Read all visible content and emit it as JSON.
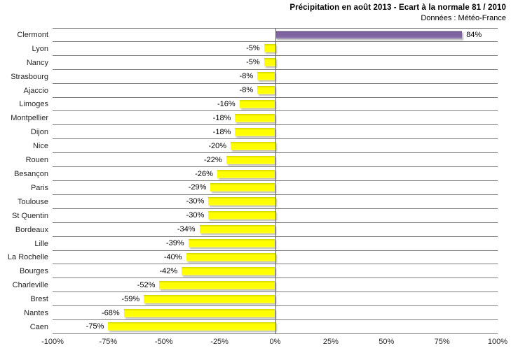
{
  "chart_data": {
    "type": "bar",
    "orientation": "horizontal",
    "title": "Précipitation en août 2013 - Ecart à la normale 81 / 2010",
    "subtitle": "Données : Météo-France",
    "categories": [
      "Clermont",
      "Lyon",
      "Nancy",
      "Strasbourg",
      "Ajaccio",
      "Limoges",
      "Montpellier",
      "Dijon",
      "Nice",
      "Rouen",
      "Besançon",
      "Paris",
      "Toulouse",
      "St Quentin",
      "Bordeaux",
      "Lille",
      "La Rochelle",
      "Bourges",
      "Charleville",
      "Brest",
      "Nantes",
      "Caen"
    ],
    "values": [
      84,
      -5,
      -5,
      -8,
      -8,
      -16,
      -18,
      -18,
      -20,
      -22,
      -26,
      -29,
      -30,
      -30,
      -34,
      -39,
      -40,
      -42,
      -52,
      -59,
      -68,
      -75
    ],
    "value_labels": [
      "84%",
      "-5%",
      "-5%",
      "-8%",
      "-8%",
      "-16%",
      "-18%",
      "-18%",
      "-20%",
      "-22%",
      "-26%",
      "-29%",
      "-30%",
      "-30%",
      "-34%",
      "-39%",
      "-40%",
      "-42%",
      "-52%",
      "-59%",
      "-68%",
      "-75%"
    ],
    "xlabel": "",
    "ylabel": "",
    "xlim": [
      -100,
      100
    ],
    "x_ticks": [
      "-100%",
      "-75%",
      "-50%",
      "-25%",
      "0%",
      "25%",
      "50%",
      "75%",
      "100%"
    ],
    "grid": "horizontal-row-separators",
    "legend": "none",
    "colors": {
      "positive_bar": "#8064A2",
      "negative_bar": "#FFFF00",
      "gridline": "#7f7f7f",
      "zero_axis": "#595959",
      "text": "#262626"
    }
  }
}
